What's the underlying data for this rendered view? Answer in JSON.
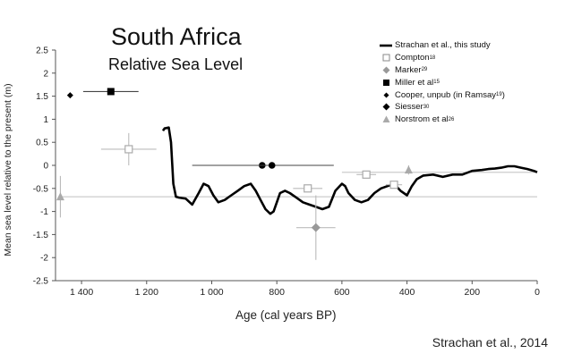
{
  "titles": {
    "main": "South Africa",
    "sub": "Relative Sea Level",
    "credit": "Strachan et al., 2014"
  },
  "chart_data": {
    "type": "line",
    "title": "South Africa",
    "subtitle": "Relative Sea Level",
    "xlabel": "Age (cal years BP)",
    "ylabel": "Mean sea level relative to the present (m)",
    "xlim": [
      1480,
      0
    ],
    "ylim": [
      -2.5,
      2.5
    ],
    "x_ticks": [
      1400,
      1200,
      1000,
      800,
      600,
      400,
      200,
      0
    ],
    "x_tick_labels": [
      "1 400",
      "1 200",
      "1 000",
      "800",
      "600",
      "400",
      "200",
      "0"
    ],
    "y_ticks": [
      2.5,
      2,
      1.5,
      1,
      0.5,
      0,
      -0.5,
      -1,
      -1.5,
      -2,
      -2.5
    ],
    "y_tick_labels": [
      "2.5",
      "2",
      "1.5",
      "1",
      "0.5",
      "0",
      "-0.5",
      "-1",
      "-1.5",
      "-2",
      "-2.5"
    ],
    "grid": false,
    "legend_position": "top-right",
    "series": [
      {
        "name": "Strachan et al., this study",
        "style": "thick-line",
        "color": "#000000",
        "x": [
          1150,
          1145,
          1132,
          1125,
          1118,
          1110,
          1100,
          1080,
          1060,
          1040,
          1025,
          1010,
          995,
          980,
          960,
          940,
          920,
          900,
          880,
          865,
          850,
          835,
          820,
          810,
          800,
          790,
          775,
          760,
          740,
          720,
          700,
          680,
          660,
          640,
          620,
          600,
          590,
          580,
          560,
          540,
          520,
          500,
          480,
          460,
          440,
          420,
          400,
          385,
          370,
          350,
          320,
          290,
          260,
          230,
          200,
          170,
          150,
          130,
          110,
          90,
          70,
          50,
          30,
          10,
          0
        ],
        "y": [
          0.75,
          0.8,
          0.82,
          0.5,
          -0.4,
          -0.68,
          -0.7,
          -0.72,
          -0.85,
          -0.6,
          -0.4,
          -0.45,
          -0.65,
          -0.8,
          -0.75,
          -0.65,
          -0.55,
          -0.45,
          -0.4,
          -0.55,
          -0.75,
          -0.95,
          -1.05,
          -1.0,
          -0.8,
          -0.6,
          -0.55,
          -0.6,
          -0.7,
          -0.8,
          -0.85,
          -0.9,
          -0.95,
          -0.9,
          -0.55,
          -0.4,
          -0.45,
          -0.6,
          -0.75,
          -0.8,
          -0.75,
          -0.6,
          -0.5,
          -0.45,
          -0.4,
          -0.55,
          -0.65,
          -0.45,
          -0.3,
          -0.22,
          -0.2,
          -0.25,
          -0.2,
          -0.2,
          -0.12,
          -0.1,
          -0.08,
          -0.07,
          -0.05,
          -0.02,
          -0.02,
          -0.05,
          -0.08,
          -0.12,
          -0.15
        ]
      },
      {
        "name": "Compton",
        "ref": "18",
        "style": "open-square",
        "color": "#aaaaaa",
        "points": [
          {
            "x": 1255,
            "y": 0.35,
            "xerr": 85,
            "yerr": 0.35
          },
          {
            "x": 705,
            "y": -0.5,
            "xerr": 45,
            "yerr": 0
          },
          {
            "x": 525,
            "y": -0.2,
            "xerr": 30,
            "yerr": 0
          },
          {
            "x": 440,
            "y": -0.42,
            "xerr": 25,
            "yerr": 0
          }
        ]
      },
      {
        "name": "Marker",
        "ref": "29",
        "style": "gray-diamond",
        "color": "#999999",
        "points": [
          {
            "x": 680,
            "y": -1.35,
            "xerr": 60,
            "yerr": 0.7
          }
        ]
      },
      {
        "name": "Miller et al",
        "ref": "15",
        "style": "filled-square",
        "color": "#000000",
        "points": [
          {
            "x": 1310,
            "y": 1.6,
            "xerr": 85,
            "yerr": 0
          }
        ]
      },
      {
        "name": "Cooper, unpub (in Ramsay",
        "ref": "19",
        "style": "small-filled-diamond",
        "color": "#000000",
        "points": [
          {
            "x": 1435,
            "y": 1.52,
            "xerr": 0,
            "yerr": 0
          }
        ]
      },
      {
        "name": "Siesser",
        "ref": "30",
        "style": "filled-diamond",
        "color": "#000000",
        "points": [
          {
            "x": 845,
            "y": 0.0,
            "xerr": 215,
            "yerr": 0
          },
          {
            "x": 815,
            "y": 0.0,
            "xerr": 190,
            "yerr": 0
          }
        ]
      },
      {
        "name": "Norstrom et al",
        "ref": "26",
        "style": "gray-triangle",
        "color": "#aaaaaa",
        "points": [
          {
            "x": 1465,
            "y": -0.68,
            "xerr": 0,
            "yerr": 0.45
          },
          {
            "x": 395,
            "y": -0.1,
            "xerr": 0,
            "yerr": 0.1
          }
        ]
      }
    ],
    "reference_lines": [
      {
        "y": -0.68,
        "x_from": 1465,
        "x_to": 0,
        "color": "#cccccc"
      },
      {
        "y": -0.15,
        "x_from": 600,
        "x_to": 0,
        "color": "#cccccc"
      }
    ]
  }
}
